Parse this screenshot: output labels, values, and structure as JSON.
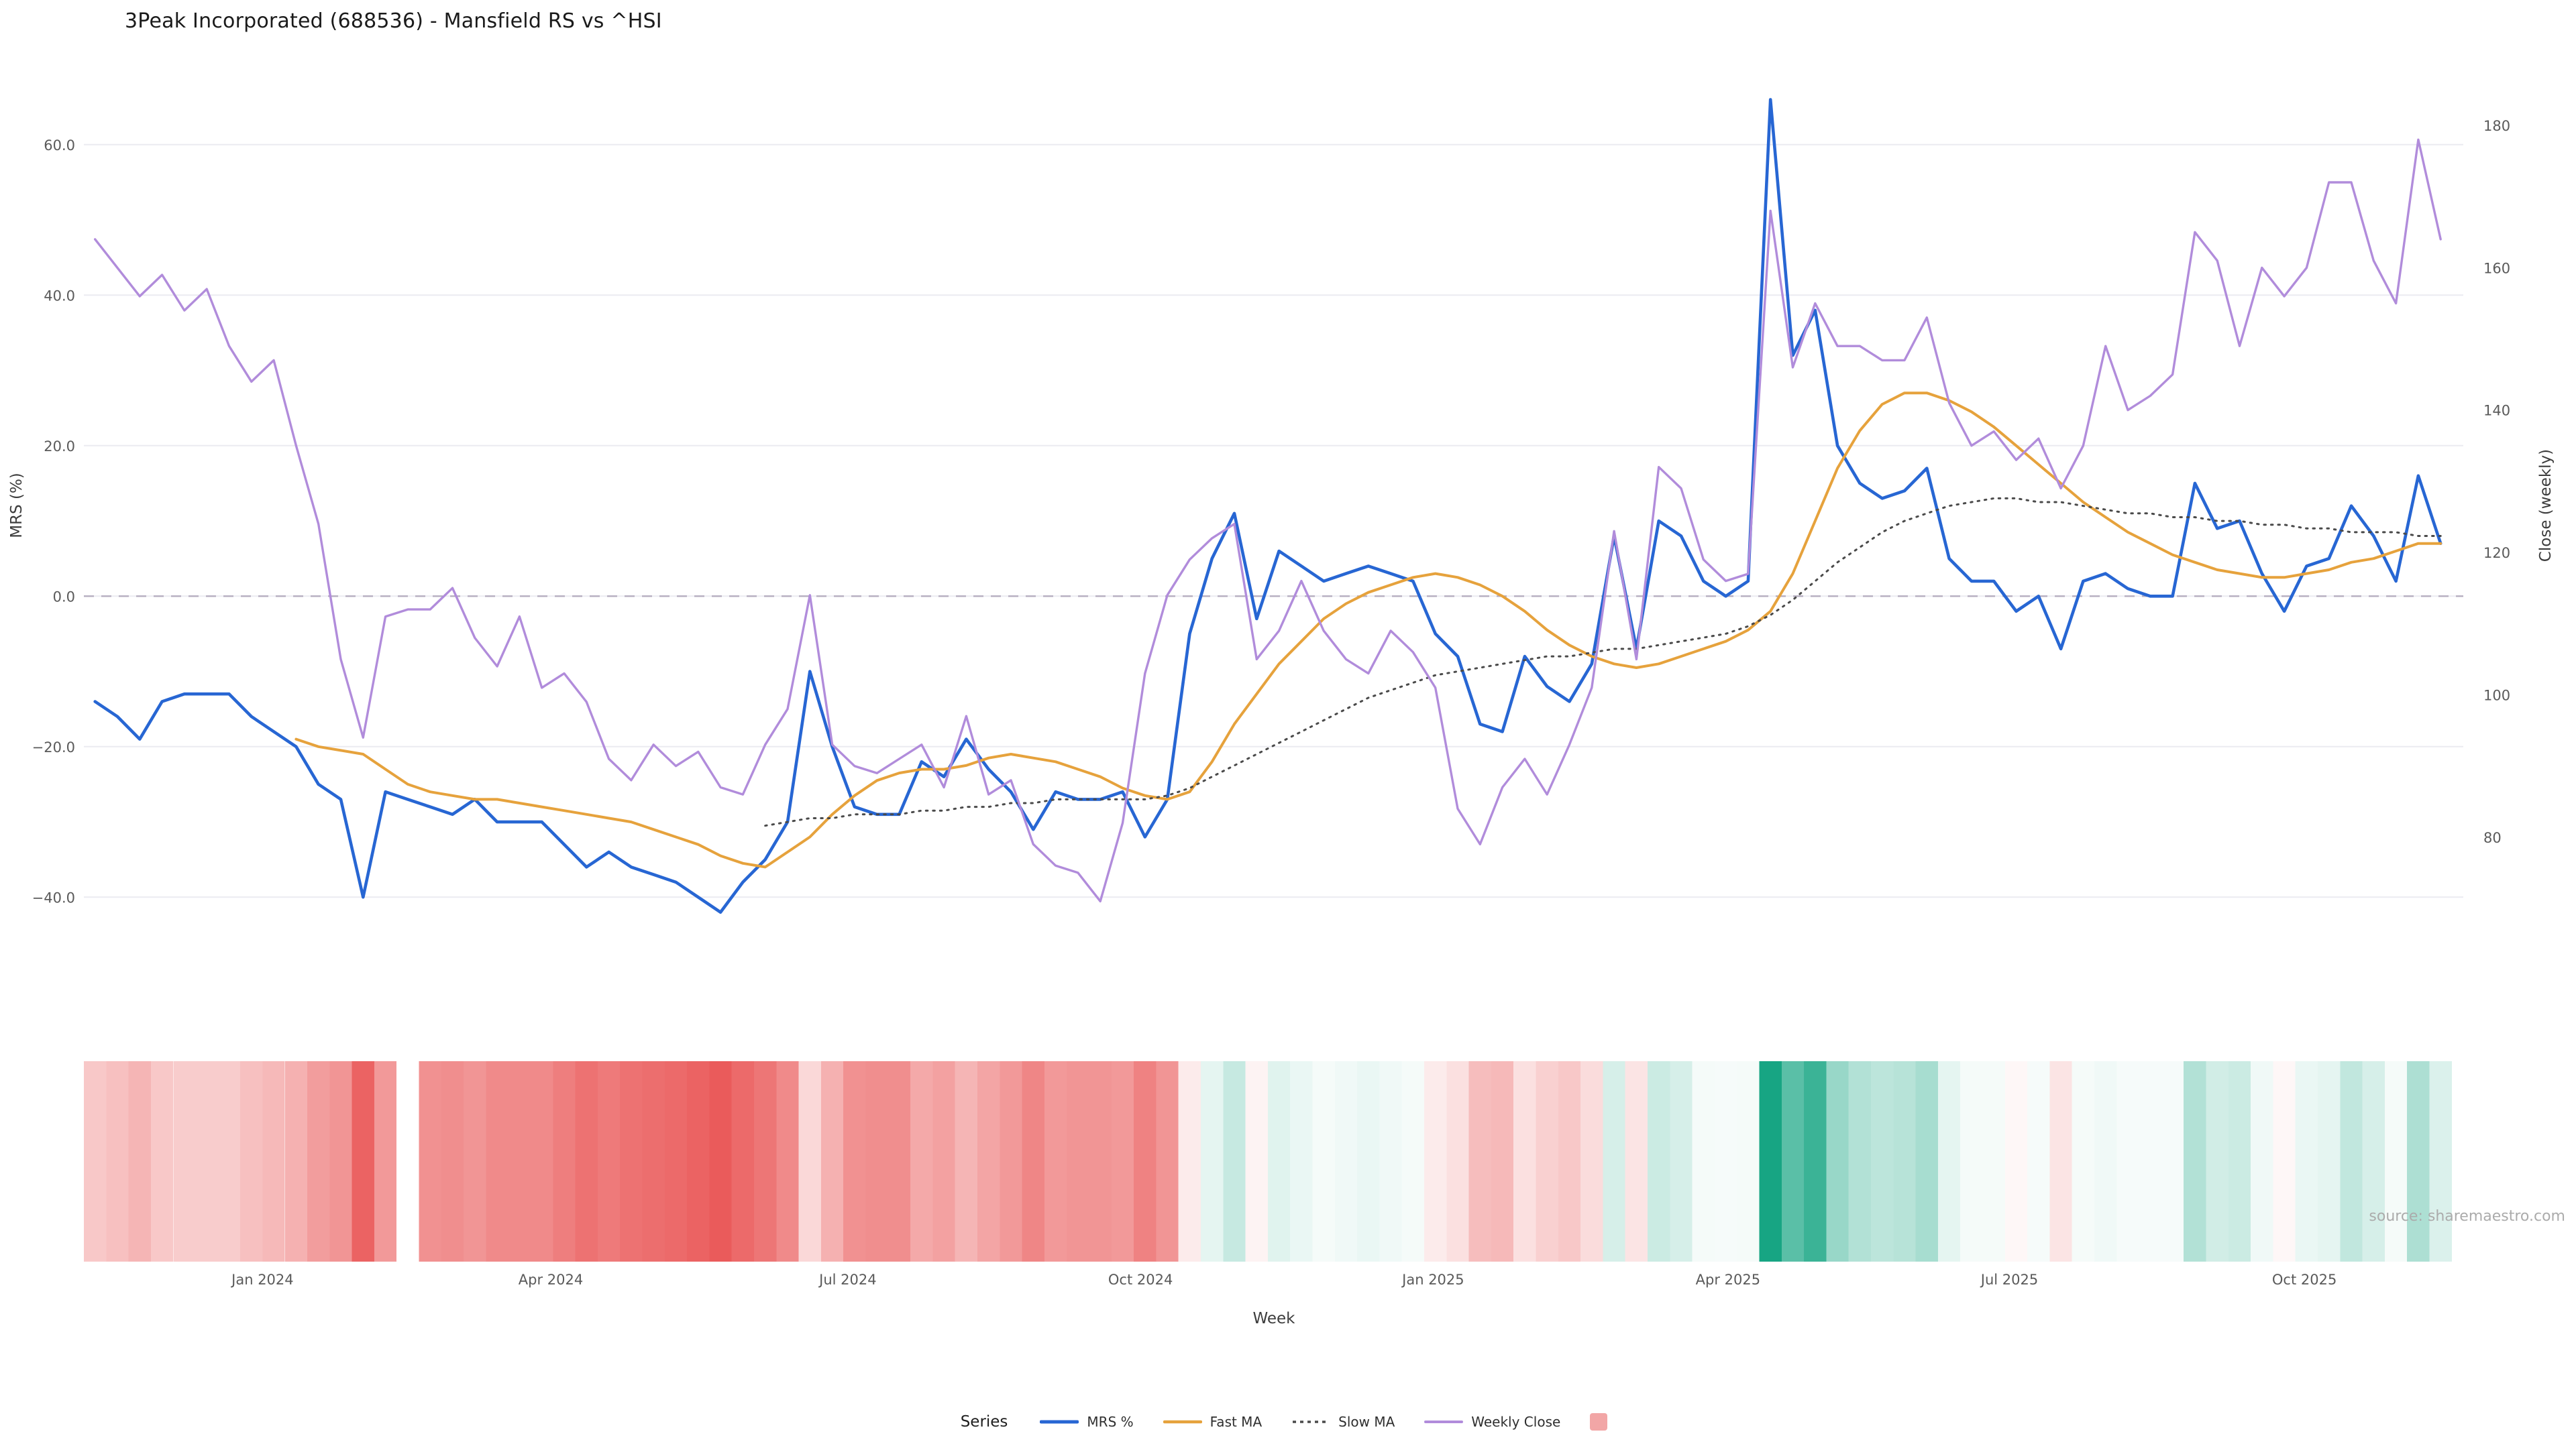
{
  "title": "3Peak Incorporated (688536) - Mansfield RS vs ^HSI",
  "source": "source: sharemaestro.com",
  "axes": {
    "y_left": {
      "label": "MRS (%)",
      "ticks": [
        "60.0",
        "40.0",
        "20.0",
        "0.0",
        "−20.0",
        "−40.0"
      ],
      "tick_values": [
        60,
        40,
        20,
        0,
        -20,
        -40
      ]
    },
    "y_right": {
      "label": "Close (weekly)",
      "ticks": [
        "180",
        "160",
        "140",
        "120",
        "100",
        "80"
      ],
      "tick_values": [
        180,
        160,
        140,
        120,
        100,
        80
      ]
    },
    "x": {
      "label": "Week",
      "ticks": [
        "Jan 2024",
        "Apr 2024",
        "Jul 2024",
        "Oct 2024",
        "Jan 2025",
        "Apr 2025",
        "Jul 2025",
        "Oct 2025"
      ],
      "tick_week_index": [
        7.5,
        20.4,
        33.7,
        46.8,
        59.9,
        73.1,
        85.7,
        98.9
      ]
    }
  },
  "legend": {
    "title": "Series",
    "entries": [
      {
        "label": "MRS %",
        "color": "#2766d3"
      },
      {
        "label": "Fast MA",
        "color": "#e6a23c"
      },
      {
        "label": "Slow MA",
        "color": "#4a4a4a"
      },
      {
        "label": "Weekly Close",
        "color": "#b18cdb"
      },
      {
        "label": "",
        "color": "#f2a6a6"
      }
    ]
  },
  "chart_data": {
    "type": "line",
    "title": "3Peak Incorporated (688536) - Mansfield RS vs ^HSI",
    "x_unit": "week_index",
    "weeks": 106,
    "x_range_dates": "Nov 2023 to Nov 2025 (weekly)",
    "grid": "horizontal-only",
    "zero_reference_line": true,
    "y_left_range": [
      -43,
      67.2
    ],
    "y_right_range": [
      68.4,
      184.9
    ],
    "legend_position": "bottom-center",
    "series": [
      {
        "name": "MRS %",
        "slug": "mrs",
        "axis": "left",
        "color": "#2766d3",
        "width": 4.6,
        "values": [
          -14,
          -16,
          -19,
          -14,
          -13,
          -13,
          -13,
          -16,
          -18,
          -20,
          -25,
          -27,
          -40,
          -26,
          -27,
          -28,
          -29,
          -27,
          -30,
          -30,
          -30,
          -33,
          -36,
          -34,
          -36,
          -37,
          -38,
          -40,
          -42,
          -38,
          -35,
          -30,
          -10,
          -20,
          -28,
          -29,
          -29,
          -22,
          -24,
          -19,
          -23,
          -26,
          -31,
          -26,
          -27,
          -27,
          -26,
          -32,
          -27,
          -5,
          5,
          11,
          -3,
          6,
          4,
          2,
          3,
          4,
          3,
          2,
          -5,
          -8,
          -17,
          -18,
          -8,
          -12,
          -14,
          -9,
          8,
          -7,
          10,
          8,
          2,
          0,
          2,
          66,
          32,
          38,
          20,
          15,
          13,
          14,
          17,
          5,
          2,
          2,
          -2,
          0,
          -7,
          2,
          3,
          1,
          0,
          0,
          15,
          9,
          10,
          3,
          -2,
          4,
          5,
          12,
          8,
          2,
          16,
          7
        ]
      },
      {
        "name": "Fast MA",
        "slug": "fast-ma",
        "axis": "left",
        "color": "#e6a23c",
        "width": 4,
        "values": [
          null,
          null,
          null,
          null,
          null,
          null,
          null,
          null,
          null,
          -19,
          -20,
          -20.5,
          -21,
          -23,
          -25,
          -26,
          -26.5,
          -27,
          -27,
          -27.5,
          -28,
          -28.5,
          -29,
          -29.5,
          -30,
          -31,
          -32,
          -33,
          -34.5,
          -35.5,
          -36,
          -34,
          -32,
          -29,
          -26.5,
          -24.5,
          -23.5,
          -23,
          -23,
          -22.5,
          -21.5,
          -21,
          -21.5,
          -22,
          -23,
          -24,
          -25.5,
          -26.5,
          -27,
          -26,
          -22,
          -17,
          -13,
          -9,
          -6,
          -3,
          -1,
          0.5,
          1.5,
          2.5,
          3,
          2.5,
          1.5,
          0,
          -2,
          -4.5,
          -6.5,
          -8,
          -9,
          -9.5,
          -9,
          -8,
          -7,
          -6,
          -4.5,
          -2,
          3,
          10,
          17,
          22,
          25.5,
          27,
          27,
          26,
          24.5,
          22.5,
          20,
          17.5,
          15,
          12.5,
          10.5,
          8.5,
          7,
          5.5,
          4.5,
          3.5,
          3,
          2.5,
          2.5,
          3,
          3.5,
          4.5,
          5,
          6,
          7,
          7
        ]
      },
      {
        "name": "Slow MA",
        "slug": "slow-ma",
        "axis": "left",
        "color": "#4a4a4a",
        "width": 3,
        "dash": "2.5 8",
        "values": [
          null,
          null,
          null,
          null,
          null,
          null,
          null,
          null,
          null,
          null,
          null,
          null,
          null,
          null,
          null,
          null,
          null,
          null,
          null,
          null,
          null,
          null,
          null,
          null,
          null,
          null,
          null,
          null,
          null,
          null,
          -30.5,
          -30,
          -29.5,
          -29.5,
          -29,
          -29,
          -29,
          -28.5,
          -28.5,
          -28,
          -28,
          -27.5,
          -27.5,
          -27,
          -27,
          -27,
          -27,
          -27,
          -26.5,
          -25.5,
          -24,
          -22.5,
          -21,
          -19.5,
          -18,
          -16.5,
          -15,
          -13.5,
          -12.5,
          -11.5,
          -10.5,
          -10,
          -9.5,
          -9,
          -8.5,
          -8,
          -8,
          -7.5,
          -7,
          -7,
          -6.5,
          -6,
          -5.5,
          -5,
          -4,
          -2.5,
          -0.5,
          2,
          4.5,
          6.5,
          8.5,
          10,
          11,
          12,
          12.5,
          13,
          13,
          12.5,
          12.5,
          12,
          11.5,
          11,
          11,
          10.5,
          10.5,
          10,
          10,
          9.5,
          9.5,
          9,
          9,
          8.5,
          8.5,
          8.5,
          8,
          8
        ]
      },
      {
        "name": "Weekly Close",
        "slug": "weekly-close",
        "axis": "right",
        "color": "#b18cdb",
        "width": 3.4,
        "values": [
          164,
          160,
          156,
          159,
          154,
          157,
          149,
          144,
          147,
          135,
          124,
          105,
          94,
          111,
          112,
          112,
          115,
          108,
          104,
          111,
          101,
          103,
          99,
          91,
          88,
          93,
          90,
          92,
          87,
          86,
          93,
          98,
          114,
          93,
          90,
          89,
          91,
          93,
          87,
          97,
          86,
          88,
          79,
          76,
          75,
          71,
          82,
          103,
          114,
          119,
          122,
          124,
          105,
          109,
          116,
          109,
          105,
          103,
          109,
          106,
          101,
          84,
          79,
          87,
          91,
          86,
          93,
          101,
          123,
          105,
          132,
          129,
          119,
          116,
          117,
          168,
          146,
          155,
          149,
          149,
          147,
          147,
          153,
          141,
          135,
          137,
          133,
          136,
          129,
          135,
          149,
          140,
          142,
          145,
          165,
          161,
          149,
          160,
          156,
          160,
          172,
          172,
          161,
          155,
          178,
          164
        ]
      }
    ],
    "heatmap": {
      "description": "weekly color strip below main chart, red for negative MRS %, green for positive MRS %",
      "derived_from": "MRS %",
      "scale_max": 45,
      "gap_indices": [
        14
      ],
      "negative_color": "#e84f4f",
      "positive_color": "#17a583"
    }
  }
}
